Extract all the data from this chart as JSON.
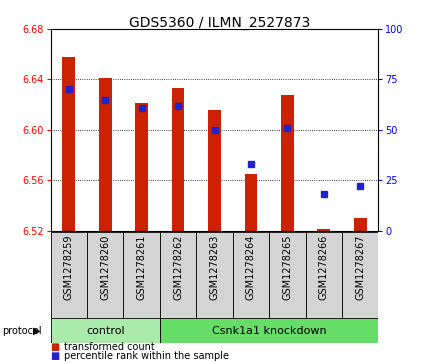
{
  "title": "GDS5360 / ILMN_2527873",
  "samples": [
    "GSM1278259",
    "GSM1278260",
    "GSM1278261",
    "GSM1278262",
    "GSM1278263",
    "GSM1278264",
    "GSM1278265",
    "GSM1278266",
    "GSM1278267"
  ],
  "transformed_count": [
    6.658,
    6.641,
    6.621,
    6.633,
    6.616,
    6.565,
    6.628,
    6.521,
    6.53
  ],
  "percentile_rank": [
    70,
    65,
    61,
    62,
    50,
    33,
    51,
    18,
    22
  ],
  "ylim": [
    6.52,
    6.68
  ],
  "y2lim": [
    0,
    100
  ],
  "yticks": [
    6.52,
    6.56,
    6.6,
    6.64,
    6.68
  ],
  "y2ticks": [
    0,
    25,
    50,
    75,
    100
  ],
  "bar_bottom": 6.52,
  "bar_color": "#cc2200",
  "dot_color": "#2222cc",
  "groups": [
    {
      "label": "control",
      "start": 0,
      "end": 3,
      "color": "#aaeaaa"
    },
    {
      "label": "Csnk1a1 knockdown",
      "start": 3,
      "end": 9,
      "color": "#66dd66"
    }
  ],
  "protocol_label": "protocol",
  "legend_items": [
    {
      "label": "transformed count",
      "color": "#cc2200"
    },
    {
      "label": "percentile rank within the sample",
      "color": "#2222cc"
    }
  ],
  "bar_width": 0.35,
  "dot_size": 4,
  "tick_label_fontsize": 7,
  "label_fontsize": 7,
  "title_fontsize": 10,
  "group_fontsize": 8,
  "legend_fontsize": 7
}
